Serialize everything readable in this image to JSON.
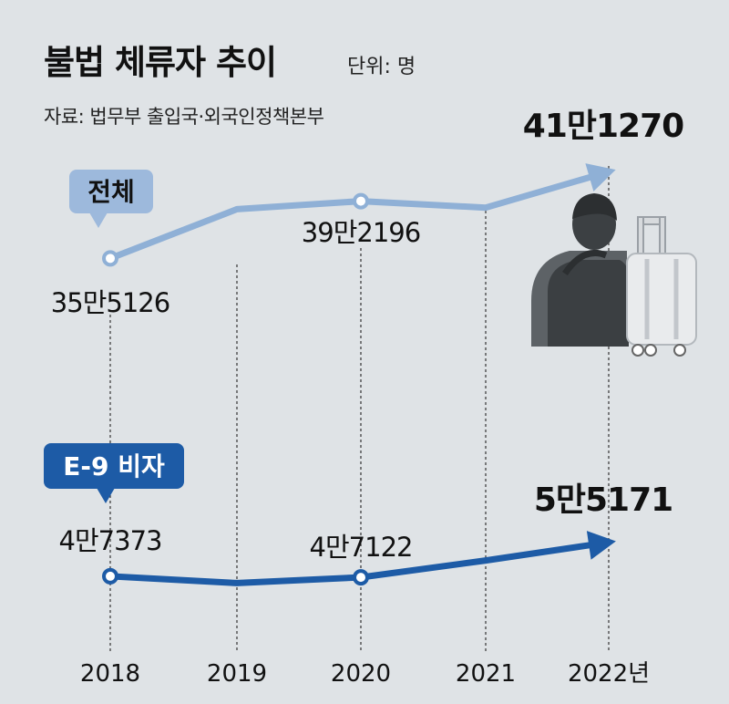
{
  "header": {
    "title": "불법 체류자 추이",
    "unit": "단위: 명",
    "source": "자료: 법무부 출입국·외국인정책본부"
  },
  "colors": {
    "background": "#dfe3e6",
    "total_series": "#8fb0d6",
    "e9_series": "#1d5ba6",
    "text": "#111111"
  },
  "chart_data": {
    "type": "line",
    "x": [
      "2018",
      "2019",
      "2020",
      "2021",
      "2022년"
    ],
    "series": [
      {
        "name": "전체",
        "values": [
          355126,
          387000,
          392196,
          388000,
          411270
        ],
        "labels": [
          "35만5126",
          "",
          "39만2196",
          "",
          "41만1270"
        ]
      },
      {
        "name": "E-9 비자",
        "values": [
          47373,
          45800,
          47122,
          51000,
          55171
        ],
        "labels": [
          "4만7373",
          "",
          "4만7122",
          "",
          "5만5171"
        ]
      }
    ],
    "grid": "dashed vertical lines at each year",
    "illustration": "traveler-with-suitcase-icon"
  }
}
